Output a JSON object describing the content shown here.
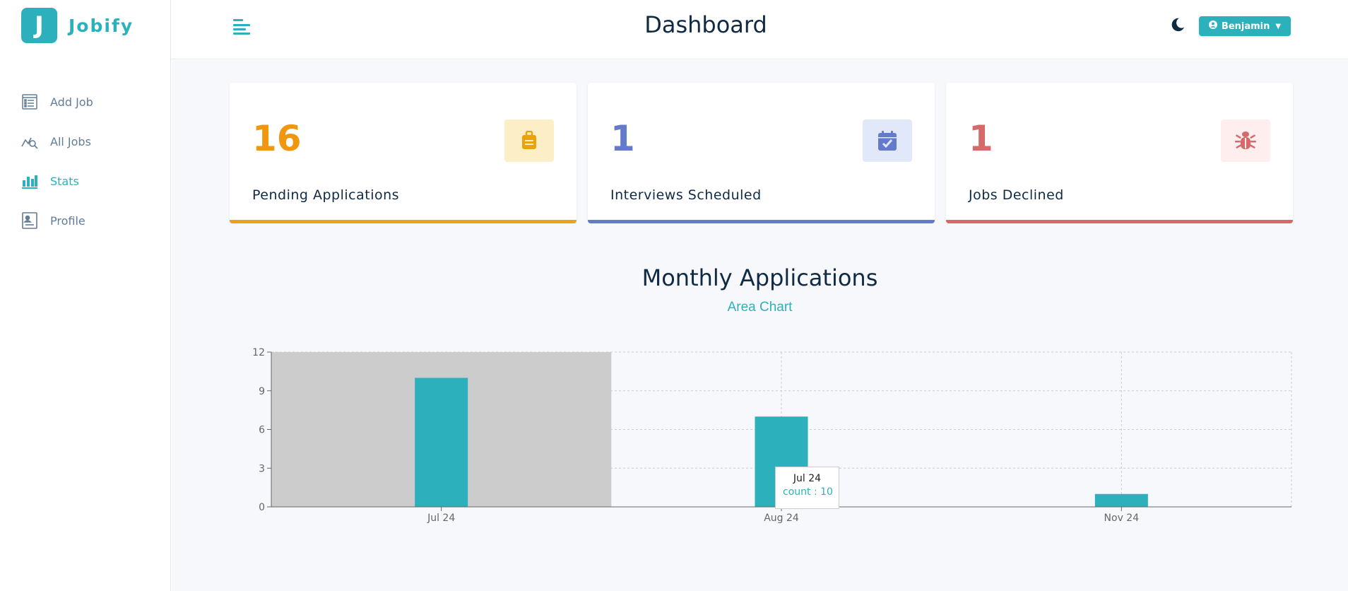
{
  "brand": {
    "logo_letter": "J",
    "name": "Jobify",
    "accent": "#2cb1bc"
  },
  "sidebar": {
    "items": [
      {
        "label": "Add Job",
        "icon": "add-job-icon",
        "active": false
      },
      {
        "label": "All Jobs",
        "icon": "all-jobs-icon",
        "active": false
      },
      {
        "label": "Stats",
        "icon": "stats-icon",
        "active": true
      },
      {
        "label": "Profile",
        "icon": "profile-icon",
        "active": false
      }
    ]
  },
  "header": {
    "title": "Dashboard",
    "user_name": "Benjamin"
  },
  "stats": [
    {
      "count": "16",
      "label": "Pending Applications",
      "color": "#e9b949",
      "text_color": "#f0960f",
      "icon": "briefcase-icon",
      "icon_bg": "#fcefc7"
    },
    {
      "count": "1",
      "label": "Interviews Scheduled",
      "color": "#647acb",
      "text_color": "#647acb",
      "icon": "calendar-check-icon",
      "icon_bg": "#e0e8f9"
    },
    {
      "count": "1",
      "label": "Jobs Declined",
      "color": "#d66a6a",
      "text_color": "#d66a6a",
      "icon": "bug-icon",
      "icon_bg": "#ffeeee"
    }
  ],
  "chart_section": {
    "title": "Monthly Applications",
    "toggle_label": "Area Chart"
  },
  "chart_data": {
    "type": "bar",
    "categories": [
      "Jul 24",
      "Aug 24",
      "Nov 24"
    ],
    "series": [
      {
        "name": "count",
        "values": [
          10,
          7,
          1
        ]
      }
    ],
    "ylim": [
      0,
      12
    ],
    "yticks": [
      0,
      3,
      6,
      9,
      12
    ],
    "grid": true,
    "bar_color": "#2cb1bc",
    "hovered_category": "Jul 24",
    "tooltip": {
      "label": "Jul 24",
      "value_text": "count : 10"
    }
  }
}
